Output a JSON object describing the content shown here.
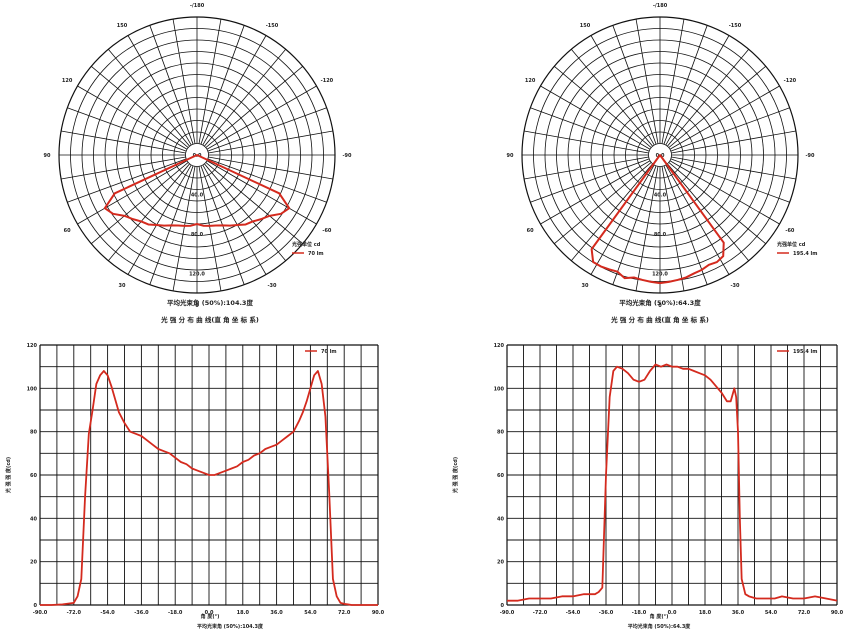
{
  "chart_data": [
    {
      "type": "line",
      "coordinate_system": "polar",
      "angle_labels": [
        "-/180",
        "150",
        "120",
        "90",
        "60",
        "30",
        "0",
        "-30",
        "-60",
        "-90",
        "-120",
        "-150"
      ],
      "radial_labels": [
        "0.0",
        "40.0",
        "80.0",
        "120.0"
      ],
      "legend": {
        "title": "光强单位 cd",
        "series": [
          "70 lm"
        ]
      },
      "caption": "平均光束角 (50%):104.3度",
      "subtitle": "光 强 分 布 曲 线(直 角 坐 标 系)",
      "series": [
        {
          "name": "70 lm",
          "color": "#d42a1e",
          "points": [
            {
              "angle": -65,
              "value": 0
            },
            {
              "angle": -65,
              "value": 92
            },
            {
              "angle": -60,
              "value": 108
            },
            {
              "angle": -55,
              "value": 104
            },
            {
              "angle": -50,
              "value": 96
            },
            {
              "angle": -45,
              "value": 92
            },
            {
              "angle": -40,
              "value": 88
            },
            {
              "angle": -35,
              "value": 86
            },
            {
              "angle": -30,
              "value": 82
            },
            {
              "angle": -25,
              "value": 79
            },
            {
              "angle": -20,
              "value": 76
            },
            {
              "angle": -15,
              "value": 74
            },
            {
              "angle": -10,
              "value": 73
            },
            {
              "angle": -5,
              "value": 72
            },
            {
              "angle": 0,
              "value": 70
            },
            {
              "angle": 5,
              "value": 72
            },
            {
              "angle": 10,
              "value": 73
            },
            {
              "angle": 15,
              "value": 74
            },
            {
              "angle": 20,
              "value": 76
            },
            {
              "angle": 25,
              "value": 79
            },
            {
              "angle": 30,
              "value": 82
            },
            {
              "angle": 35,
              "value": 86
            },
            {
              "angle": 40,
              "value": 88
            },
            {
              "angle": 45,
              "value": 92
            },
            {
              "angle": 50,
              "value": 96
            },
            {
              "angle": 55,
              "value": 104
            },
            {
              "angle": 60,
              "value": 108
            },
            {
              "angle": 65,
              "value": 92
            },
            {
              "angle": 65,
              "value": 0
            }
          ]
        }
      ]
    },
    {
      "type": "line",
      "coordinate_system": "polar",
      "angle_labels": [
        "-/180",
        "150",
        "120",
        "90",
        "60",
        "30",
        "0",
        "-30",
        "-60",
        "-90",
        "-120",
        "-150"
      ],
      "radial_labels": [
        "0.0",
        "40.0",
        "80.0",
        "120.0"
      ],
      "legend": {
        "title": "光强单位 cd",
        "series": [
          "195.4 lm"
        ]
      },
      "caption": "平均光束角 (50%):64.3度",
      "subtitle": "光 强 分 布 曲 线(直 角 坐 标 系)",
      "series": [
        {
          "name": "195.4 lm",
          "color": "#d42a1e",
          "points": [
            {
              "angle": -36,
              "value": 0
            },
            {
              "angle": -36,
              "value": 118
            },
            {
              "angle": -32,
              "value": 128
            },
            {
              "angle": -28,
              "value": 128
            },
            {
              "angle": -24,
              "value": 127
            },
            {
              "angle": -20,
              "value": 126
            },
            {
              "angle": -16,
              "value": 130
            },
            {
              "angle": -12,
              "value": 127
            },
            {
              "angle": -8,
              "value": 128
            },
            {
              "angle": -4,
              "value": 129
            },
            {
              "angle": 0,
              "value": 130
            },
            {
              "angle": 4,
              "value": 129
            },
            {
              "angle": 8,
              "value": 128
            },
            {
              "angle": 12,
              "value": 127
            },
            {
              "angle": 16,
              "value": 125
            },
            {
              "angle": 20,
              "value": 124
            },
            {
              "angle": 24,
              "value": 122
            },
            {
              "angle": 28,
              "value": 123
            },
            {
              "angle": 32,
              "value": 121
            },
            {
              "angle": 36,
              "value": 110
            },
            {
              "angle": 36,
              "value": 0
            }
          ]
        }
      ]
    },
    {
      "type": "line",
      "xlim": [
        -90,
        90
      ],
      "ylim": [
        0,
        120
      ],
      "x_ticks": [
        "-90.0",
        "-72.0",
        "-54.0",
        "-36.0",
        "-18.0",
        "0.0",
        "18.0",
        "36.0",
        "54.0",
        "72.0",
        "90.0"
      ],
      "y_ticks": [
        "0",
        "20",
        "40",
        "60",
        "80",
        "100",
        "120"
      ],
      "xlabel": "角 度(°)",
      "ylabel": "光 强 强 度(cd)",
      "caption": "平均光束角 (50%):104.3度",
      "legend": [
        "70 lm"
      ],
      "series": [
        {
          "name": "70 lm",
          "color": "#d42a1e",
          "x": [
            -90,
            -84,
            -78,
            -72,
            -70,
            -68,
            -66,
            -64,
            -62,
            -60,
            -58,
            -56,
            -54,
            -52,
            -50,
            -48,
            -45,
            -42,
            -39,
            -36,
            -33,
            -30,
            -27,
            -24,
            -21,
            -18,
            -15,
            -12,
            -9,
            -6,
            -3,
            0,
            3,
            6,
            9,
            12,
            15,
            18,
            21,
            24,
            27,
            30,
            33,
            36,
            39,
            42,
            45,
            48,
            50,
            52,
            54,
            56,
            58,
            60,
            62,
            64,
            66,
            68,
            70,
            72,
            74,
            76,
            78,
            84,
            90
          ],
          "y": [
            0,
            0,
            0.3,
            1,
            4,
            12,
            50,
            79,
            90,
            102,
            106,
            108,
            106,
            101,
            95,
            89,
            84,
            80,
            79,
            78,
            76,
            74,
            72,
            71,
            70,
            68,
            66,
            65,
            63,
            62,
            61,
            60,
            60,
            61,
            62,
            63,
            64,
            66,
            67,
            69,
            70,
            72,
            73,
            74,
            76,
            78,
            80,
            85,
            89,
            94,
            100,
            106,
            108,
            102,
            87,
            52,
            12,
            4,
            1,
            0.5,
            0.3,
            0,
            0,
            0,
            0
          ]
        }
      ]
    },
    {
      "type": "line",
      "xlim": [
        -90,
        90
      ],
      "ylim": [
        0,
        120
      ],
      "x_ticks": [
        "-90.0",
        "-72.0",
        "-54.0",
        "-36.0",
        "-18.0",
        "0.0",
        "18.0",
        "36.0",
        "54.0",
        "72.0",
        "90.0"
      ],
      "y_ticks": [
        "0",
        "20",
        "40",
        "60",
        "80",
        "100",
        "120"
      ],
      "xlabel": "角 度(°)",
      "ylabel": "光 强 强 度(cd)",
      "caption": "平均光束角 (50%):64.3度",
      "legend": [
        "195.4 lm"
      ],
      "series": [
        {
          "name": "195.4 lm",
          "color": "#d42a1e",
          "x": [
            -90,
            -84,
            -78,
            -72,
            -66,
            -60,
            -54,
            -48,
            -42,
            -40,
            -38,
            -36,
            -34,
            -32,
            -30,
            -27,
            -24,
            -21,
            -18,
            -15,
            -12,
            -9,
            -6,
            -3,
            0,
            3,
            6,
            9,
            12,
            15,
            18,
            21,
            24,
            27,
            30,
            32,
            34,
            35,
            36,
            37,
            38,
            40,
            42,
            46,
            50,
            56,
            60,
            66,
            72,
            78,
            84,
            90
          ],
          "y": [
            2,
            2,
            3,
            3,
            3,
            4,
            4,
            5,
            5,
            6,
            8,
            60,
            96,
            108,
            110,
            109,
            107,
            104,
            103,
            104,
            108,
            111,
            110,
            111,
            110,
            110,
            109,
            109,
            108,
            107,
            106,
            104,
            101,
            98,
            94,
            94,
            100,
            96,
            80,
            40,
            12,
            5,
            4,
            3,
            3,
            3,
            4,
            3,
            3,
            4,
            3,
            2
          ]
        }
      ]
    }
  ]
}
